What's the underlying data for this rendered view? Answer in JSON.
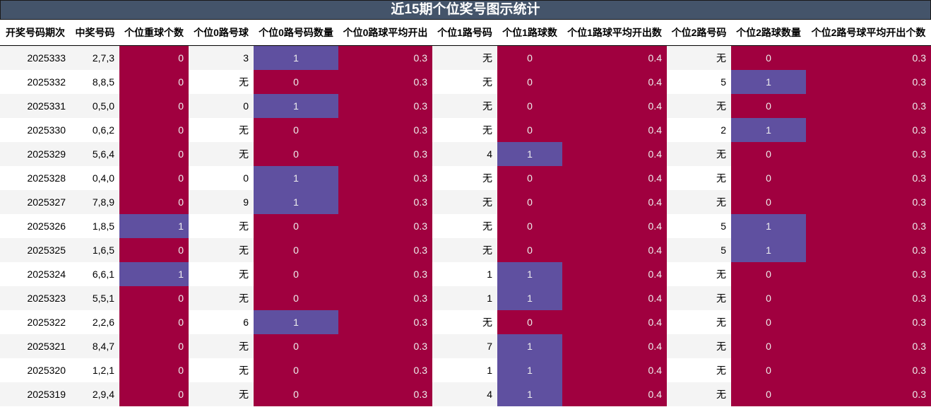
{
  "title": "近15期个位奖号图示统计",
  "colors": {
    "header_bg": "#44546a",
    "low": "#a0003f",
    "high": "#5f50a0",
    "stripe": "#f4f4f4"
  },
  "columns": [
    "开奖号码期次",
    "中奖号码",
    "个位重球个数",
    "个位0路号球",
    "个位0路号码数量",
    "个位0路球平均开出",
    "个位1路号码",
    "个位1路球数",
    "个位1路球平均开出数",
    "个位2路号码",
    "个位2路球数量",
    "个位2路号球平均开出个数"
  ],
  "rows": [
    [
      "2025333",
      "2,7,3",
      "0",
      "3",
      "1",
      "0.3",
      "无",
      "0",
      "0.4",
      "无",
      "0",
      "0.3"
    ],
    [
      "2025332",
      "8,8,5",
      "0",
      "无",
      "0",
      "0.3",
      "无",
      "0",
      "0.4",
      "5",
      "1",
      "0.3"
    ],
    [
      "2025331",
      "0,5,0",
      "0",
      "0",
      "1",
      "0.3",
      "无",
      "0",
      "0.4",
      "无",
      "0",
      "0.3"
    ],
    [
      "2025330",
      "0,6,2",
      "0",
      "无",
      "0",
      "0.3",
      "无",
      "0",
      "0.4",
      "2",
      "1",
      "0.3"
    ],
    [
      "2025329",
      "5,6,4",
      "0",
      "无",
      "0",
      "0.3",
      "4",
      "1",
      "0.4",
      "无",
      "0",
      "0.3"
    ],
    [
      "2025328",
      "0,4,0",
      "0",
      "0",
      "1",
      "0.3",
      "无",
      "0",
      "0.4",
      "无",
      "0",
      "0.3"
    ],
    [
      "2025327",
      "7,8,9",
      "0",
      "9",
      "1",
      "0.3",
      "无",
      "0",
      "0.4",
      "无",
      "0",
      "0.3"
    ],
    [
      "2025326",
      "1,8,5",
      "1",
      "无",
      "0",
      "0.3",
      "无",
      "0",
      "0.4",
      "5",
      "1",
      "0.3"
    ],
    [
      "2025325",
      "1,6,5",
      "0",
      "无",
      "0",
      "0.3",
      "无",
      "0",
      "0.4",
      "5",
      "1",
      "0.3"
    ],
    [
      "2025324",
      "6,6,1",
      "1",
      "无",
      "0",
      "0.3",
      "1",
      "1",
      "0.4",
      "无",
      "0",
      "0.3"
    ],
    [
      "2025323",
      "5,5,1",
      "0",
      "无",
      "0",
      "0.3",
      "1",
      "1",
      "0.4",
      "无",
      "0",
      "0.3"
    ],
    [
      "2025322",
      "2,2,6",
      "0",
      "6",
      "1",
      "0.3",
      "无",
      "0",
      "0.4",
      "无",
      "0",
      "0.3"
    ],
    [
      "2025321",
      "8,4,7",
      "0",
      "无",
      "0",
      "0.3",
      "7",
      "1",
      "0.4",
      "无",
      "0",
      "0.3"
    ],
    [
      "2025320",
      "1,2,1",
      "0",
      "无",
      "0",
      "0.3",
      "1",
      "1",
      "0.4",
      "无",
      "0",
      "0.3"
    ],
    [
      "2025319",
      "2,9,4",
      "0",
      "无",
      "0",
      "0.3",
      "4",
      "1",
      "0.4",
      "无",
      "0",
      "0.3"
    ]
  ]
}
